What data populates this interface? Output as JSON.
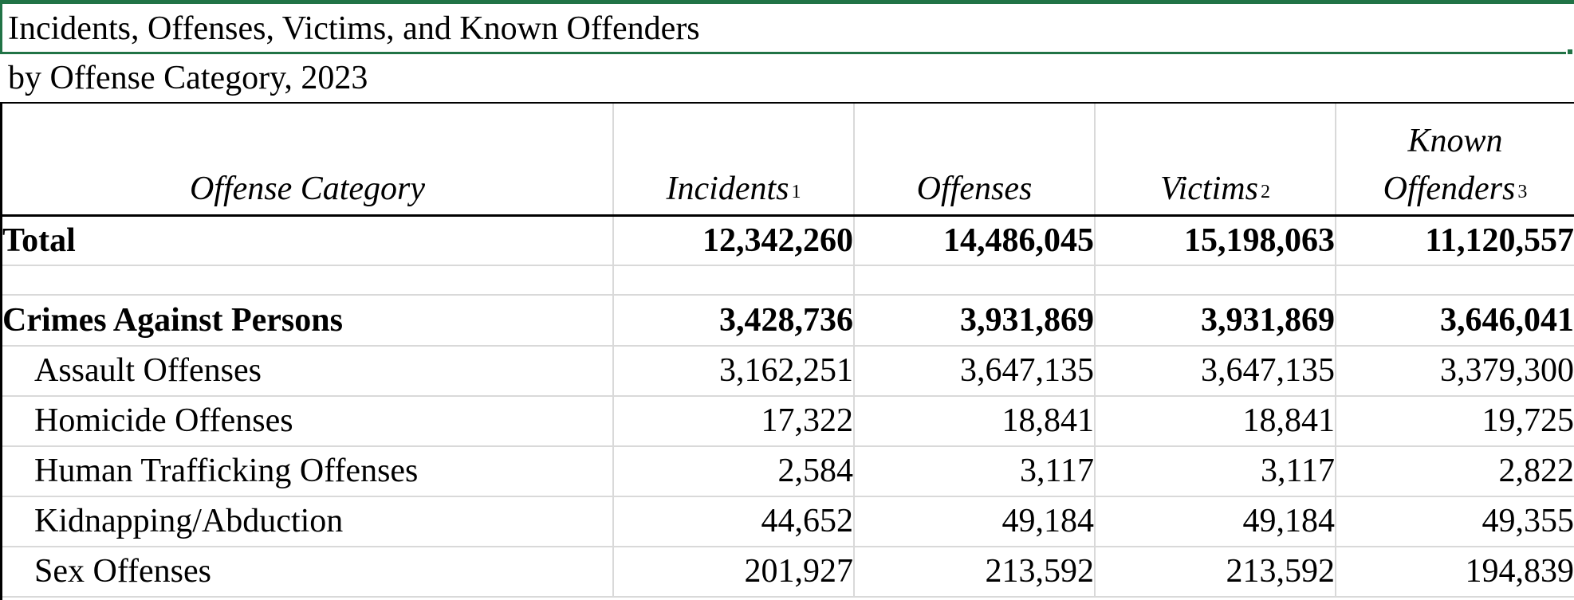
{
  "sheet": {
    "title": "Incidents, Offenses, Victims, and Known Offenders",
    "subtitle": "by Offense Category, 2023"
  },
  "columns": {
    "category": "Offense Category",
    "incidents": "Incidents",
    "incidents_note": "1",
    "offenses": "Offenses",
    "victims": "Victims",
    "victims_note": "2",
    "offenders_line1": "Known",
    "offenders_line2": "Offenders",
    "offenders_note": "3"
  },
  "total": {
    "label": "Total",
    "incidents": "12,342,260",
    "offenses": "14,486,045",
    "victims": "15,198,063",
    "offenders": "11,120,557"
  },
  "group": {
    "label": "Crimes Against Persons",
    "incidents": "3,428,736",
    "offenses": "3,931,869",
    "victims": "3,931,869",
    "offenders": "3,646,041"
  },
  "rows": [
    {
      "label": "Assault Offenses",
      "incidents": "3,162,251",
      "offenses": "3,647,135",
      "victims": "3,647,135",
      "offenders": "3,379,300"
    },
    {
      "label": "Homicide Offenses",
      "incidents": "17,322",
      "offenses": "18,841",
      "victims": "18,841",
      "offenders": "19,725"
    },
    {
      "label": "Human Trafficking Offenses",
      "incidents": "2,584",
      "offenses": "3,117",
      "victims": "3,117",
      "offenders": "2,822"
    },
    {
      "label": "Kidnapping/Abduction",
      "incidents": "44,652",
      "offenses": "49,184",
      "victims": "49,184",
      "offenders": "49,355"
    },
    {
      "label": "Sex Offenses",
      "incidents": "201,927",
      "offenses": "213,592",
      "victims": "213,592",
      "offenders": "194,839"
    }
  ],
  "colors": {
    "selection": "#217346",
    "gridline": "#d9d9d9",
    "border": "#000000"
  }
}
